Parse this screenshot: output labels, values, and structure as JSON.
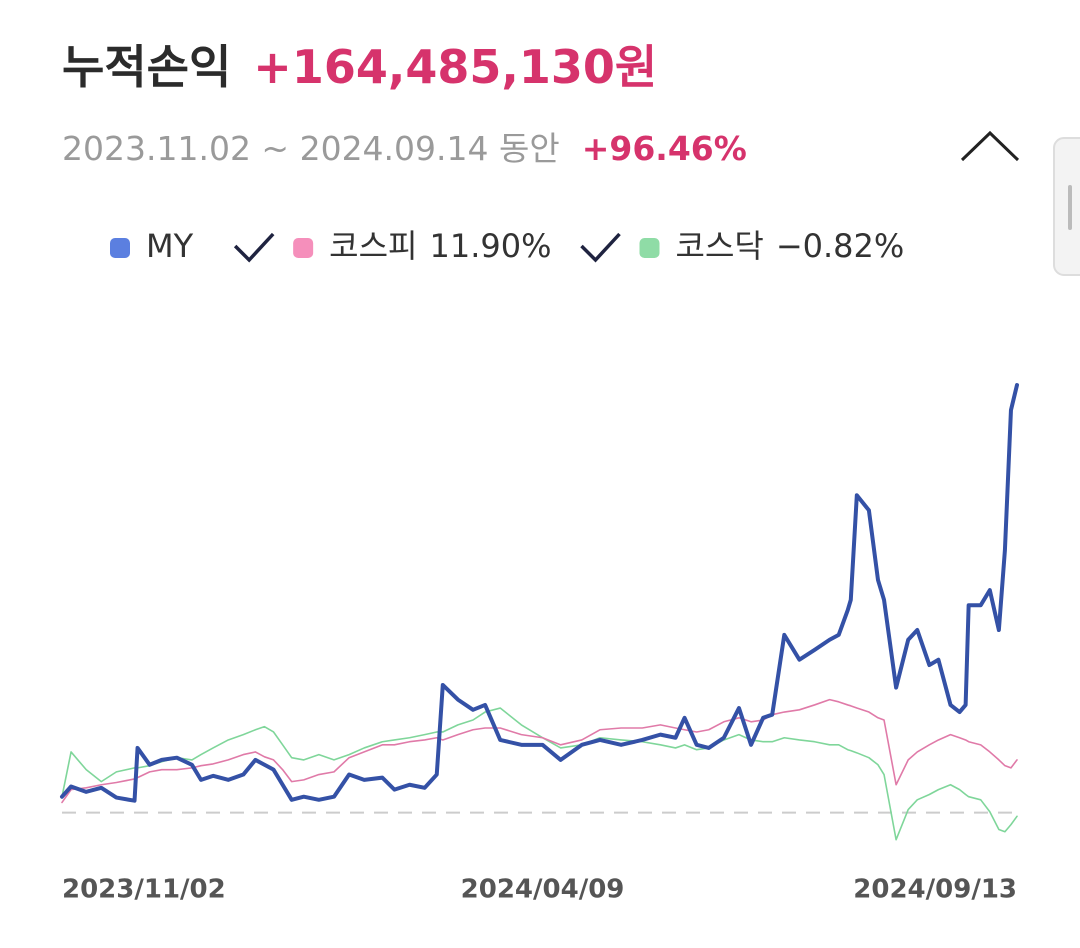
{
  "chart_data": {
    "type": "line",
    "title": "누적손익",
    "total_profit": {
      "value": 164485130,
      "label": "+164,485,130원"
    },
    "period": "2023.11.02 ~ 2024.09.14 동안",
    "return": {
      "value": 96.46,
      "label": "+96.46%"
    },
    "x": [
      "2023/11/02",
      "2023/11/05",
      "2023/11/10",
      "2023/11/15",
      "2023/11/20",
      "2023/11/26",
      "2023/11/27",
      "2023/12/01",
      "2023/12/05",
      "2023/12/10",
      "2023/12/15",
      "2023/12/18",
      "2023/12/22",
      "2023/12/27",
      "2024/01/01",
      "2024/01/05",
      "2024/01/08",
      "2024/01/11",
      "2024/01/14",
      "2024/01/17",
      "2024/01/21",
      "2024/01/26",
      "2024/01/31",
      "2024/02/05",
      "2024/02/10",
      "2024/02/16",
      "2024/02/20",
      "2024/02/25",
      "2024/03/01",
      "2024/03/05",
      "2024/03/07",
      "2024/03/12",
      "2024/03/17",
      "2024/03/21",
      "2024/03/26",
      "2024/04/02",
      "2024/04/09",
      "2024/04/15",
      "2024/04/22",
      "2024/04/28",
      "2024/05/05",
      "2024/05/12",
      "2024/05/18",
      "2024/05/23",
      "2024/05/26",
      "2024/05/30",
      "2024/06/03",
      "2024/06/08",
      "2024/06/13",
      "2024/06/17",
      "2024/06/21",
      "2024/06/24",
      "2024/06/28",
      "2024/07/03",
      "2024/07/08",
      "2024/07/13",
      "2024/07/16",
      "2024/07/19",
      "2024/07/20",
      "2024/07/22",
      "2024/07/26",
      "2024/07/29",
      "2024/07/31",
      "2024/08/04",
      "2024/08/08",
      "2024/08/11",
      "2024/08/15",
      "2024/08/18",
      "2024/08/22",
      "2024/08/25",
      "2024/08/27",
      "2024/08/28",
      "2024/09/01",
      "2024/09/04",
      "2024/09/07",
      "2024/09/09",
      "2024/09/11",
      "2024/09/13"
    ],
    "series": [
      {
        "name": "MY",
        "color": "#3451a6",
        "marker_color": "#5b7fe0",
        "line_width": 4,
        "values": [
          3.6,
          5.9,
          4.7,
          5.6,
          3.4,
          2.7,
          14.6,
          10.8,
          11.9,
          12.4,
          10.8,
          7.4,
          8.3,
          7.4,
          8.6,
          11.9,
          10.8,
          9.7,
          6.3,
          2.9,
          3.6,
          2.9,
          3.6,
          8.6,
          7.4,
          7.9,
          5.2,
          6.3,
          5.6,
          8.6,
          28.8,
          25.5,
          23.2,
          24.3,
          16.4,
          15.3,
          15.3,
          11.9,
          15.3,
          16.4,
          15.3,
          16.4,
          17.6,
          16.9,
          21.4,
          15.3,
          14.6,
          16.9,
          23.6,
          15.3,
          21.4,
          22.1,
          40.1,
          34.5,
          36.7,
          39.0,
          40.1,
          45.7,
          48.0,
          71.6,
          68.2,
          52.5,
          48.0,
          28.2,
          39.0,
          41.2,
          33.3,
          34.5,
          24.3,
          22.7,
          24.3,
          46.8,
          46.8,
          50.2,
          41.2,
          59.2,
          90.8,
          96.46
        ]
      },
      {
        "name": "코스피",
        "return": {
          "value": 11.9,
          "label": "11.90%"
        },
        "color": "#e07aa8",
        "marker_color": "#f58fbb",
        "line_width": 1.6,
        "values": [
          2.3,
          5.2,
          5.6,
          6.3,
          6.8,
          7.6,
          7.9,
          9.2,
          9.7,
          9.7,
          10.1,
          10.6,
          11.0,
          11.9,
          13.1,
          13.7,
          12.6,
          11.9,
          9.7,
          7.0,
          7.4,
          8.6,
          9.2,
          12.4,
          13.7,
          15.3,
          15.3,
          16.0,
          16.4,
          16.9,
          16.4,
          17.6,
          18.7,
          19.1,
          19.1,
          17.6,
          16.9,
          15.3,
          16.4,
          18.7,
          19.1,
          19.1,
          19.8,
          19.1,
          18.7,
          18.2,
          18.7,
          20.5,
          21.4,
          20.5,
          20.9,
          22.1,
          22.7,
          23.2,
          24.3,
          25.5,
          25.0,
          24.3,
          24.1,
          23.6,
          22.7,
          21.4,
          20.9,
          6.3,
          11.9,
          13.7,
          15.3,
          16.4,
          17.6,
          16.9,
          16.4,
          16.0,
          15.3,
          13.7,
          11.9,
          10.6,
          10.1,
          11.9
        ]
      },
      {
        "name": "코스닥",
        "return": {
          "value": -0.82,
          "label": "−0.82%"
        },
        "color": "#7fd69a",
        "marker_color": "#8fdca6",
        "line_width": 1.6,
        "values": [
          3.6,
          13.7,
          9.7,
          7.0,
          9.2,
          10.1,
          10.1,
          10.6,
          11.5,
          12.4,
          11.9,
          13.1,
          14.6,
          16.4,
          17.6,
          18.7,
          19.4,
          18.2,
          15.3,
          12.4,
          11.9,
          13.1,
          11.9,
          13.1,
          14.6,
          16.0,
          16.4,
          16.9,
          17.6,
          18.2,
          18.2,
          19.8,
          20.9,
          22.7,
          23.6,
          19.8,
          16.9,
          14.6,
          15.3,
          16.9,
          16.4,
          16.0,
          15.3,
          14.6,
          15.3,
          14.2,
          14.6,
          16.4,
          17.6,
          16.4,
          16.0,
          16.0,
          16.9,
          16.4,
          16.0,
          15.3,
          15.3,
          14.2,
          14.0,
          13.5,
          12.4,
          10.8,
          8.6,
          -6.1,
          0.7,
          2.9,
          4.1,
          5.2,
          6.3,
          5.2,
          4.1,
          3.6,
          2.9,
          0.2,
          -3.8,
          -4.3,
          -2.7,
          -0.82
        ]
      }
    ],
    "xlim": [
      "2023/11/02",
      "2024/09/13"
    ],
    "xticks": [
      "2023/11/02",
      "2024/04/09",
      "2024/09/13"
    ],
    "ylim": [
      -10,
      110
    ],
    "baseline": 0
  }
}
